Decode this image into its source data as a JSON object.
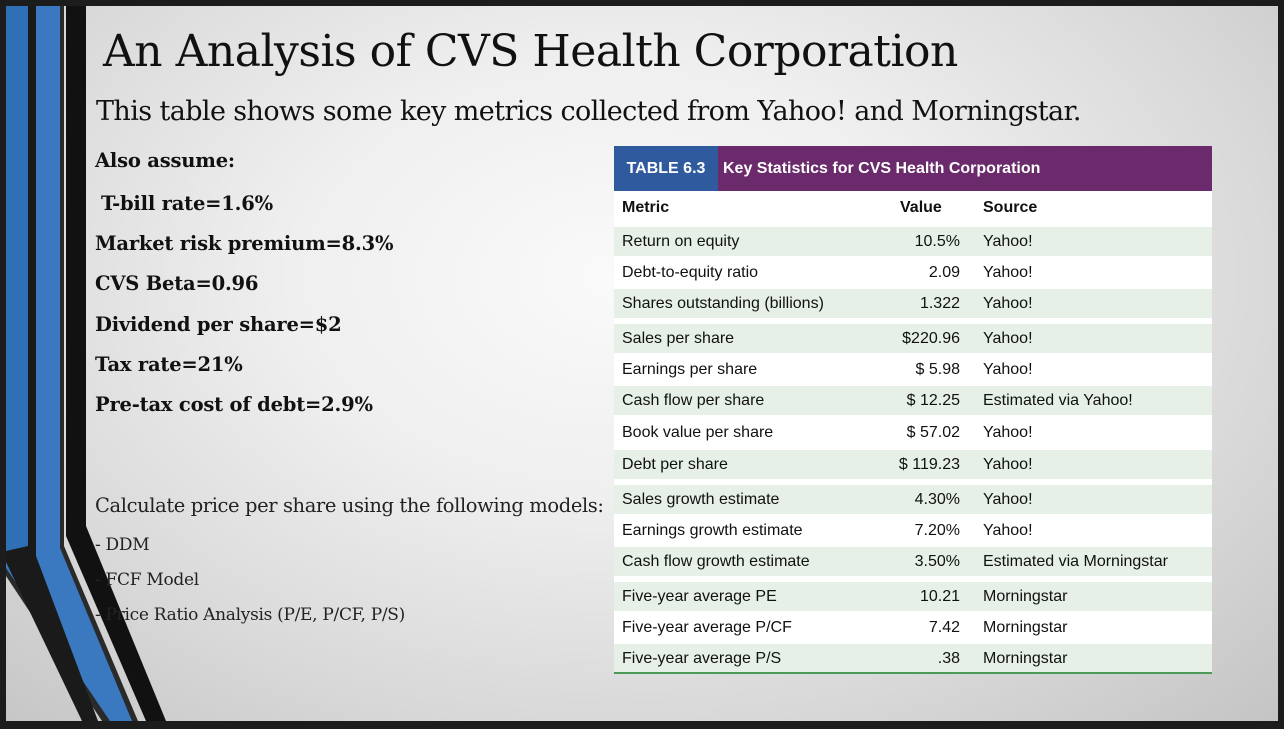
{
  "slide": {
    "title": "An Analysis of  CVS Health Corporation",
    "subtitle": "This table shows some key metrics collected from Yahoo! and Morningstar.",
    "assume_heading": "Also assume:",
    "assumptions": [
      "T-bill rate=1.6%",
      "Market risk premium=8.3%",
      "CVS Beta=0.96",
      "Dividend per share=$2",
      "Tax rate=21%",
      "Pre-tax cost of  debt=2.9%"
    ],
    "calc_prompt": "Calculate price per share using the following models:",
    "models": [
      "- DDM",
      "- FCF Model",
      "- Price Ratio Analysis (P/E, P/CF, P/S)"
    ]
  },
  "table": {
    "number": "TABLE 6.3",
    "title": "Key Statistics for CVS Health Corporation",
    "columns": [
      "Metric",
      "Value",
      "Source"
    ],
    "rows": [
      {
        "metric": "Return on equity",
        "value": "10.5%",
        "source": "Yahoo!"
      },
      {
        "metric": "Debt-to-equity ratio",
        "value": "2.09",
        "source": "Yahoo!"
      },
      {
        "metric": "Shares outstanding (billions)",
        "value": "1.322",
        "source": "Yahoo!"
      },
      {
        "metric": "Sales per share",
        "value": "$220.96",
        "source": "Yahoo!"
      },
      {
        "metric": "Earnings per share",
        "value": "$   5.98",
        "source": "Yahoo!"
      },
      {
        "metric": "Cash flow per share",
        "value": "$   12.25",
        "source": "Estimated via Yahoo!"
      },
      {
        "metric": "Book value per share",
        "value": "$ 57.02",
        "source": "Yahoo!"
      },
      {
        "metric": "Debt per share",
        "value": "$ 119.23",
        "source": "Yahoo!"
      },
      {
        "metric": "Sales growth estimate",
        "value": "4.30%",
        "source": "Yahoo!"
      },
      {
        "metric": "Earnings growth estimate",
        "value": "7.20%",
        "source": "Yahoo!"
      },
      {
        "metric": "Cash flow growth estimate",
        "value": "3.50%",
        "source": "Estimated via Morningstar"
      },
      {
        "metric": "Five-year average PE",
        "value": "10.21",
        "source": "Morningstar"
      },
      {
        "metric": "Five-year average P/CF",
        "value": "7.42",
        "source": "Morningstar"
      },
      {
        "metric": "Five-year average P/S",
        "value": ".38",
        "source": "Morningstar"
      }
    ]
  },
  "colors": {
    "table_number_bg": "#2f5a9e",
    "table_title_bg": "#6a2a6b",
    "row_shade": "#e6f0e6",
    "deco_blue": "#3a78c0"
  }
}
